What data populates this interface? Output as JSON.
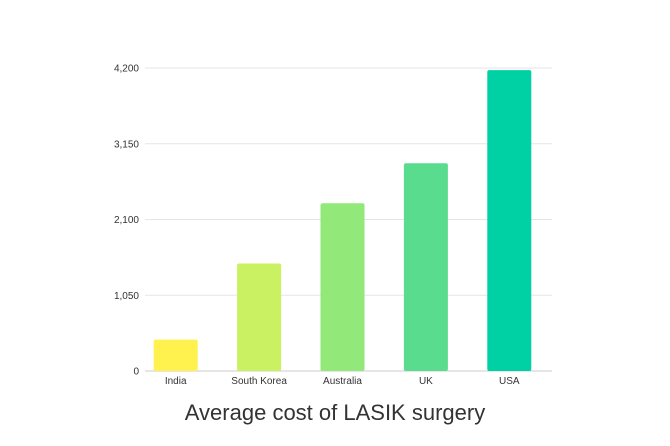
{
  "chart_data": {
    "type": "bar",
    "title": "Average cost of LASIK surgery",
    "categories": [
      "India",
      "South Korea",
      "Australia",
      "UK",
      "USA"
    ],
    "values": [
      435,
      1490,
      2325,
      2880,
      4170
    ],
    "colors": [
      "#FFF24F",
      "#C9F161",
      "#92E879",
      "#59DC8E",
      "#00D1A4"
    ],
    "ylim": [
      0,
      4200
    ],
    "yticks": [
      0,
      1050,
      2100,
      3150,
      4200
    ],
    "ytick_labels": [
      "0",
      "1,050",
      "2,100",
      "3,150",
      "4,200"
    ],
    "grid": true,
    "gridline_color": "#e5e5e5",
    "xlabel": "",
    "ylabel": ""
  }
}
